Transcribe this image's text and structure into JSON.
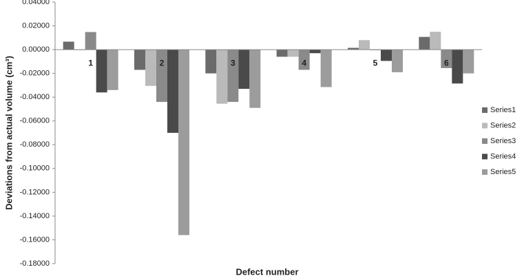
{
  "chart_data": {
    "type": "bar",
    "x_label": "Defect number",
    "y_label": "Deviations from actual volume (cm³)",
    "categories": [
      "1",
      "2",
      "3",
      "4",
      "5",
      "6"
    ],
    "series": [
      {
        "name": "Series1",
        "color": "#6b6b6b",
        "values": [
          0.0067,
          -0.017,
          -0.02,
          -0.006,
          0.0015,
          0.0107
        ]
      },
      {
        "name": "Series2",
        "color": "#bababa",
        "values": [
          -0.0005,
          -0.0305,
          -0.0455,
          -0.006,
          0.008,
          0.015
        ]
      },
      {
        "name": "Series3",
        "color": "#8a8a8a",
        "values": [
          0.0148,
          -0.044,
          -0.044,
          -0.017,
          -0.0005,
          -0.0155
        ]
      },
      {
        "name": "Series4",
        "color": "#4a4a4a",
        "values": [
          -0.036,
          -0.07,
          -0.033,
          -0.003,
          -0.0095,
          -0.0285
        ]
      },
      {
        "name": "Series5",
        "color": "#9c9c9c",
        "values": [
          -0.034,
          -0.156,
          -0.049,
          -0.0315,
          -0.019,
          -0.02
        ]
      }
    ],
    "ylim": [
      -0.18,
      0.04
    ],
    "yticks": [
      {
        "value": 0.04,
        "label": "0.04000"
      },
      {
        "value": 0.02,
        "label": "0.02000"
      },
      {
        "value": 0,
        "label": "0.00000"
      },
      {
        "value": -0.02,
        "label": "-0.02000"
      },
      {
        "value": -0.04,
        "label": "-0.04000"
      },
      {
        "value": -0.06,
        "label": "-0.06000"
      },
      {
        "value": -0.08,
        "label": "-0.08000"
      },
      {
        "value": -0.1,
        "label": "-0.10000"
      },
      {
        "value": -0.12,
        "label": "-0.12000"
      },
      {
        "value": -0.14,
        "label": "-0.14000"
      },
      {
        "value": -0.16,
        "label": "-0.16000"
      },
      {
        "value": -0.18,
        "label": "-0.18000"
      }
    ],
    "grid": false,
    "legend": "right"
  }
}
